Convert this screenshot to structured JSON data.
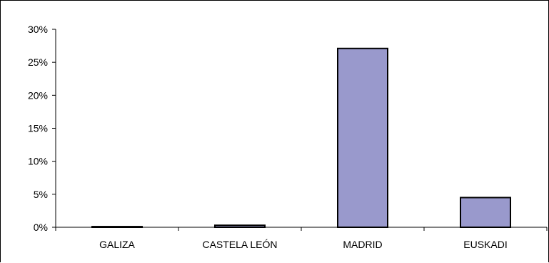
{
  "chart_data": {
    "type": "bar",
    "categories": [
      "GALIZA",
      "CASTELA LEÓN",
      "MADRID",
      "EUSKADI"
    ],
    "values": [
      0.1,
      0.3,
      27.1,
      4.5
    ],
    "y_tick_values": [
      0,
      5,
      10,
      15,
      20,
      25,
      30
    ],
    "y_tick_labels": [
      "0%",
      "5%",
      "10%",
      "15%",
      "20%",
      "25%",
      "30%"
    ],
    "ylim": [
      0,
      30
    ],
    "title": "",
    "xlabel": "",
    "ylabel": "",
    "grid": false,
    "legend": "none",
    "colors": {
      "bar_fill": "#9999cc",
      "bar_stroke": "#000000",
      "axis": "#000000"
    }
  }
}
